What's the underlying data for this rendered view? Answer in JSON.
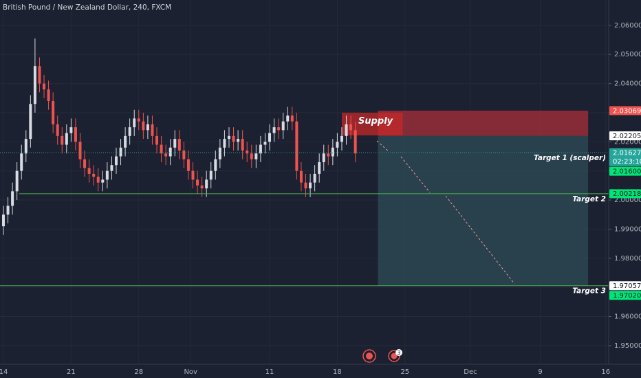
{
  "chart_data": {
    "type": "candlestick",
    "title": "British Pound / New Zealand Dollar, 240, FXCM",
    "up_color": "#d8dbe3",
    "down_color": "#ef5350",
    "background": "#1b2130",
    "x": [
      0,
      1,
      2,
      3,
      4,
      5,
      6,
      7,
      8,
      9,
      10,
      11,
      12,
      13,
      14,
      15,
      16,
      17,
      18,
      19,
      20,
      21,
      22,
      23,
      24,
      25,
      26,
      27,
      28,
      29,
      30,
      31,
      32,
      33,
      34,
      35,
      36,
      37,
      38,
      39,
      40,
      41,
      42,
      43,
      44,
      45,
      46,
      47,
      48,
      49,
      50,
      51,
      52,
      53,
      54,
      55,
      56,
      57,
      58,
      59,
      60,
      61,
      62,
      63,
      64,
      65,
      66,
      67,
      68,
      69,
      70,
      71,
      72,
      73,
      74,
      75,
      76,
      77,
      78
    ],
    "open": [
      1.991,
      1.995,
      1.998,
      2.003,
      2.01,
      2.016,
      2.021,
      2.033,
      2.046,
      2.04,
      2.038,
      2.034,
      2.026,
      2.022,
      2.019,
      2.023,
      2.025,
      2.02,
      2.014,
      2.011,
      2.009,
      2.008,
      2.006,
      2.007,
      2.01,
      2.012,
      2.015,
      2.018,
      2.022,
      2.025,
      2.028,
      2.027,
      2.024,
      2.026,
      2.022,
      2.019,
      2.016,
      2.015,
      2.018,
      2.021,
      2.017,
      2.014,
      2.01,
      2.007,
      2.005,
      2.004,
      2.007,
      2.01,
      2.014,
      2.018,
      2.021,
      2.022,
      2.02,
      2.021,
      2.017,
      2.016,
      2.014,
      2.016,
      2.019,
      2.02,
      2.023,
      2.025,
      2.024,
      2.027,
      2.029,
      2.027,
      2.01,
      2.006,
      2.004,
      2.006,
      2.009,
      2.013,
      2.016,
      2.015,
      2.018,
      2.02,
      2.022,
      2.026,
      2.024
    ],
    "high": [
      1.998,
      2.001,
      2.006,
      2.013,
      2.019,
      2.024,
      2.036,
      2.0555,
      2.049,
      2.043,
      2.041,
      2.037,
      2.029,
      2.025,
      2.026,
      2.028,
      2.028,
      2.023,
      2.017,
      2.014,
      2.012,
      2.011,
      2.01,
      2.013,
      2.015,
      2.018,
      2.021,
      2.025,
      2.028,
      2.031,
      2.031,
      2.03,
      2.029,
      2.029,
      2.025,
      2.022,
      2.019,
      2.021,
      2.024,
      2.024,
      2.02,
      2.017,
      2.013,
      2.01,
      2.008,
      2.01,
      2.013,
      2.017,
      2.021,
      2.024,
      2.025,
      2.025,
      2.024,
      2.024,
      2.02,
      2.019,
      2.019,
      2.022,
      2.023,
      2.026,
      2.028,
      2.028,
      2.03,
      2.032,
      2.032,
      2.03,
      2.013,
      2.009,
      2.009,
      2.012,
      2.016,
      2.019,
      2.019,
      2.021,
      2.023,
      2.025,
      2.029,
      2.029,
      2.027
    ],
    "low": [
      1.988,
      1.992,
      1.995,
      2.0,
      2.007,
      2.013,
      2.018,
      2.03,
      2.037,
      2.035,
      2.031,
      2.023,
      2.019,
      2.016,
      2.016,
      2.02,
      2.017,
      2.011,
      2.008,
      2.006,
      2.005,
      2.003,
      2.003,
      2.004,
      2.007,
      2.009,
      2.012,
      2.015,
      2.019,
      2.022,
      2.024,
      2.021,
      2.021,
      2.019,
      2.016,
      2.013,
      2.012,
      2.012,
      2.015,
      2.014,
      2.011,
      2.007,
      2.004,
      2.002,
      2.001,
      2.001,
      2.004,
      2.007,
      2.011,
      2.015,
      2.018,
      2.017,
      2.017,
      2.014,
      2.013,
      2.011,
      2.011,
      2.013,
      2.016,
      2.017,
      2.02,
      2.021,
      2.021,
      2.024,
      2.024,
      2.007,
      2.003,
      2.001,
      2.001,
      2.003,
      2.006,
      2.01,
      2.012,
      2.012,
      2.015,
      2.017,
      2.019,
      2.021,
      2.013
    ],
    "close": [
      1.995,
      1.998,
      2.003,
      2.01,
      2.016,
      2.021,
      2.033,
      2.046,
      2.04,
      2.038,
      2.034,
      2.026,
      2.022,
      2.019,
      2.023,
      2.025,
      2.02,
      2.014,
      2.011,
      2.009,
      2.008,
      2.006,
      2.007,
      2.01,
      2.012,
      2.015,
      2.018,
      2.022,
      2.025,
      2.028,
      2.027,
      2.024,
      2.026,
      2.022,
      2.019,
      2.016,
      2.015,
      2.018,
      2.021,
      2.017,
      2.014,
      2.01,
      2.007,
      2.005,
      2.004,
      2.007,
      2.01,
      2.014,
      2.018,
      2.021,
      2.022,
      2.02,
      2.021,
      2.017,
      2.016,
      2.014,
      2.016,
      2.019,
      2.02,
      2.023,
      2.025,
      2.024,
      2.027,
      2.029,
      2.027,
      2.01,
      2.006,
      2.004,
      2.006,
      2.009,
      2.013,
      2.016,
      2.015,
      2.018,
      2.02,
      2.022,
      2.026,
      2.024,
      2.016
    ],
    "xlim": [
      -0.76,
      134.15
    ],
    "xticks": [
      {
        "value": 0,
        "label": "14"
      },
      {
        "value": 15,
        "label": "21"
      },
      {
        "value": 30,
        "label": "28"
      },
      {
        "value": 41.5,
        "label": "Nov"
      },
      {
        "value": 59,
        "label": "11"
      },
      {
        "value": 74,
        "label": "18"
      },
      {
        "value": 89,
        "label": "25"
      },
      {
        "value": 103.5,
        "label": "Dec"
      },
      {
        "value": 119,
        "label": "9"
      },
      {
        "value": 133.5,
        "label": "16"
      }
    ],
    "ylim": [
      1.9436,
      2.0687
    ],
    "yticks": [
      {
        "value": 1.95,
        "label": "1.95000"
      },
      {
        "value": 1.96,
        "label": "1.96000"
      },
      {
        "value": 1.97,
        "label": "1.97000"
      },
      {
        "value": 1.98,
        "label": "1.98000"
      },
      {
        "value": 1.99,
        "label": "1.99000"
      },
      {
        "value": 2.0,
        "label": "2.00000"
      },
      {
        "value": 2.01,
        "label": "2.01000"
      },
      {
        "value": 2.02,
        "label": "2.02000"
      },
      {
        "value": 2.03,
        "label": "2.03000"
      },
      {
        "value": 2.04,
        "label": "2.04000"
      },
      {
        "value": 2.05,
        "label": "2.05000"
      },
      {
        "value": 2.06,
        "label": "2.06000"
      }
    ],
    "zones": [
      {
        "top": 2.0307,
        "bottom": 2.022,
        "x_range": [
          83,
          129.6
        ],
        "color": "#b2313a"
      },
      {
        "top": 2.022,
        "bottom": 1.9706,
        "x_range": [
          83,
          129.6
        ],
        "color": "#2f4e5a"
      },
      {
        "label": "Supply",
        "top": 2.03,
        "bottom": 2.0222,
        "x_range": [
          75,
          88.5
        ],
        "color": "#c62828"
      }
    ],
    "levels": [
      {
        "value": 2.01627,
        "label": "Target 1 (scalper)",
        "color": "#26a69a",
        "dotted": true,
        "x_start": -0.76
      },
      {
        "value": 2.00218,
        "label": "Target 2",
        "color": "#4caf50",
        "dotted": false,
        "x_start": 3.5
      },
      {
        "value": 1.97057,
        "label": "Target 3",
        "color": "#4caf50",
        "dotted": false,
        "x_start": -0.76
      }
    ],
    "price_labels": [
      {
        "value": 2.03069,
        "label": "2.03069",
        "bg": "#ef5350",
        "fg": "#ffffff"
      },
      {
        "value": 2.02205,
        "label": "2.02205",
        "bg": "#ffffff",
        "fg": "#131722"
      },
      {
        "value": 2.01627,
        "label": "2.01627",
        "bg": "#26a69a",
        "fg": "#ffffff",
        "countdown": "02:23:10"
      },
      {
        "value": 2.016,
        "label": "2.01600",
        "bg": "#00e676",
        "fg": "#131722"
      },
      {
        "value": 2.00218,
        "label": "2.00218",
        "bg": "#00e676",
        "fg": "#131722"
      },
      {
        "value": 1.97057,
        "label": "1.97057",
        "bg": "#ffffff",
        "fg": "#131722"
      },
      {
        "value": 1.9702,
        "label": "1.97020",
        "bg": "#00e676",
        "fg": "#131722"
      }
    ],
    "event_badge": "3"
  }
}
